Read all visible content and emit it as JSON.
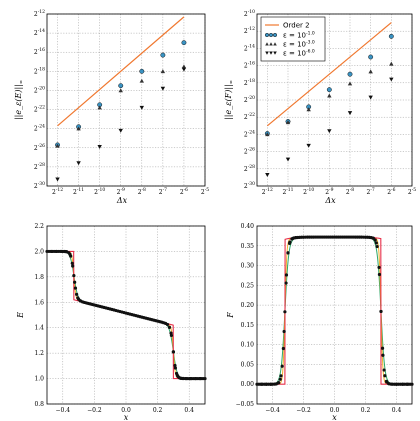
{
  "colors": {
    "order2": "#f07830",
    "eps1": "#3a93c3",
    "eps3": "#333333",
    "eps6": "#111111",
    "sol_exact": "#e8304a",
    "sol_mid": "#f0b030",
    "sol_green": "#2da86a",
    "dots": "#111111"
  },
  "chart_data": [
    {
      "type": "scatter",
      "xscale": "log2",
      "yscale": "log2",
      "xlim": [
        -12.5,
        -5
      ],
      "ylim": [
        -30,
        -12
      ],
      "xticks": [
        "2^{-12}",
        "2^{-11}",
        "2^{-10}",
        "2^{-9}",
        "2^{-8}",
        "2^{-7}",
        "2^{-6}",
        "2^{-5}"
      ],
      "yticks": [
        "2^{-30}",
        "2^{-28}",
        "2^{-26}",
        "2^{-24}",
        "2^{-22}",
        "2^{-20}",
        "2^{-18}",
        "2^{-16}",
        "2^{-14}",
        "2^{-12}"
      ],
      "xlabel": "Δx",
      "ylabel": "||e_ε(E)||_∞",
      "grid": true,
      "order2": {
        "x": [
          -12,
          -6
        ],
        "y": [
          -23.7,
          -12.3
        ]
      },
      "series": [
        {
          "marker": "circle",
          "x": [
            -12,
            -11,
            -10,
            -9,
            -8,
            -7,
            -6
          ],
          "y": [
            -25.7,
            -23.8,
            -21.5,
            -19.5,
            -18.0,
            -16.3,
            -15.0
          ]
        },
        {
          "marker": "triangle-up",
          "x": [
            -12,
            -11,
            -10,
            -9,
            -8,
            -7,
            -6
          ],
          "y": [
            -25.8,
            -24.0,
            -21.8,
            -20.0,
            -19.0,
            -18.0,
            -17.5
          ]
        },
        {
          "marker": "triangle-down",
          "x": [
            -12,
            -11,
            -10,
            -9,
            -8,
            -7,
            -6
          ],
          "y": [
            -29.3,
            -27.6,
            -25.9,
            -24.2,
            -21.8,
            -19.8,
            -17.8
          ]
        }
      ]
    },
    {
      "type": "scatter",
      "xscale": "log2",
      "yscale": "log2",
      "xlim": [
        -12.5,
        -5
      ],
      "ylim": [
        -30,
        -10
      ],
      "xticks": [
        "2^{-12}",
        "2^{-11}",
        "2^{-10}",
        "2^{-9}",
        "2^{-8}",
        "2^{-7}",
        "2^{-6}",
        "2^{-5}"
      ],
      "yticks": [
        "2^{-30}",
        "2^{-28}",
        "2^{-26}",
        "2^{-24}",
        "2^{-22}",
        "2^{-20}",
        "2^{-18}",
        "2^{-16}",
        "2^{-14}",
        "2^{-12}",
        "2^{-10}"
      ],
      "xlabel": "Δx",
      "ylabel": "||e_ε(F)||_∞",
      "grid": true,
      "legend": {
        "placement": "top-left",
        "entries": [
          "Order 2",
          "ε = 10^{-1.0}",
          "ε = 10^{-3.0}",
          "ε = 10^{-6.0}"
        ]
      },
      "order2": {
        "x": [
          -12,
          -6
        ],
        "y": [
          -23.0,
          -11.0
        ]
      },
      "series": [
        {
          "name": "ε = 10^{-1.0}",
          "marker": "circle",
          "x": [
            -12,
            -11,
            -10,
            -9,
            -8,
            -7,
            -6
          ],
          "y": [
            -23.9,
            -22.5,
            -20.8,
            -18.8,
            -17.0,
            -15.0,
            -12.6
          ]
        },
        {
          "name": "ε = 10^{-3.0}",
          "marker": "triangle-up",
          "x": [
            -12,
            -11,
            -10,
            -9,
            -8,
            -7,
            -6
          ],
          "y": [
            -24.0,
            -22.6,
            -21.1,
            -19.5,
            -18.1,
            -16.7,
            -15.8
          ]
        },
        {
          "name": "ε = 10^{-6.0}",
          "marker": "triangle-down",
          "x": [
            -12,
            -11,
            -10,
            -9,
            -8,
            -7,
            -6
          ],
          "y": [
            -28.7,
            -26.9,
            -25.3,
            -23.6,
            -21.5,
            -19.7,
            -17.6
          ]
        }
      ]
    },
    {
      "type": "line",
      "xlim": [
        -0.5,
        0.5
      ],
      "ylim": [
        0.8,
        2.2
      ],
      "xticks": [
        "−0.4",
        "−0.2",
        "0.0",
        "0.2",
        "0.4"
      ],
      "xtickvals": [
        -0.4,
        -0.2,
        0,
        0.2,
        0.4
      ],
      "yticks": [
        "0.8",
        "1.0",
        "1.2",
        "1.4",
        "1.6",
        "1.8",
        "2.0",
        "2.2"
      ],
      "ytickvals": [
        0.8,
        1.0,
        1.2,
        1.4,
        1.6,
        1.8,
        2.0,
        2.2
      ],
      "xlabel": "x",
      "ylabel": "E",
      "grid": true,
      "profile": {
        "left_level": 2.0,
        "shock_left": -0.33,
        "plateau_start": 1.62,
        "plateau_end": 1.42,
        "shock_right": 0.3,
        "right_level": 1.0
      },
      "dots_x": [
        -0.47,
        -0.44,
        -0.41,
        -0.38,
        -0.355,
        -0.34,
        -0.33,
        -0.32,
        -0.305,
        -0.29,
        0.285,
        0.3,
        0.31,
        0.32,
        0.33,
        0.345,
        0.36,
        0.38,
        0.41,
        0.44,
        0.47
      ]
    },
    {
      "type": "line",
      "xlim": [
        -0.5,
        0.5
      ],
      "ylim": [
        -0.05,
        0.4
      ],
      "xticks": [
        "−0.4",
        "−0.2",
        "0.0",
        "0.2",
        "0.4"
      ],
      "xtickvals": [
        -0.4,
        -0.2,
        0,
        0.2,
        0.4
      ],
      "yticks": [
        "−0.05",
        "0.00",
        "0.05",
        "0.10",
        "0.15",
        "0.20",
        "0.25",
        "0.30",
        "0.35",
        "0.40"
      ],
      "ytickvals": [
        -0.05,
        0,
        0.05,
        0.1,
        0.15,
        0.2,
        0.25,
        0.3,
        0.35,
        0.4
      ],
      "xlabel": "x",
      "ylabel": "F",
      "grid": true,
      "profile": {
        "outer_level": 0.0,
        "shock_left": -0.32,
        "shock_right": 0.3,
        "plateau_edge": 0.36,
        "plateau_top": 0.372
      },
      "dots_x": [
        -0.47,
        -0.44,
        -0.41,
        -0.38,
        -0.36,
        -0.345,
        -0.33,
        -0.32,
        -0.31,
        -0.3,
        -0.29,
        -0.27,
        -0.25,
        0.25,
        0.27,
        0.29,
        0.3,
        0.31,
        0.32,
        0.335,
        0.35,
        0.37,
        0.4,
        0.44,
        0.47
      ]
    }
  ]
}
